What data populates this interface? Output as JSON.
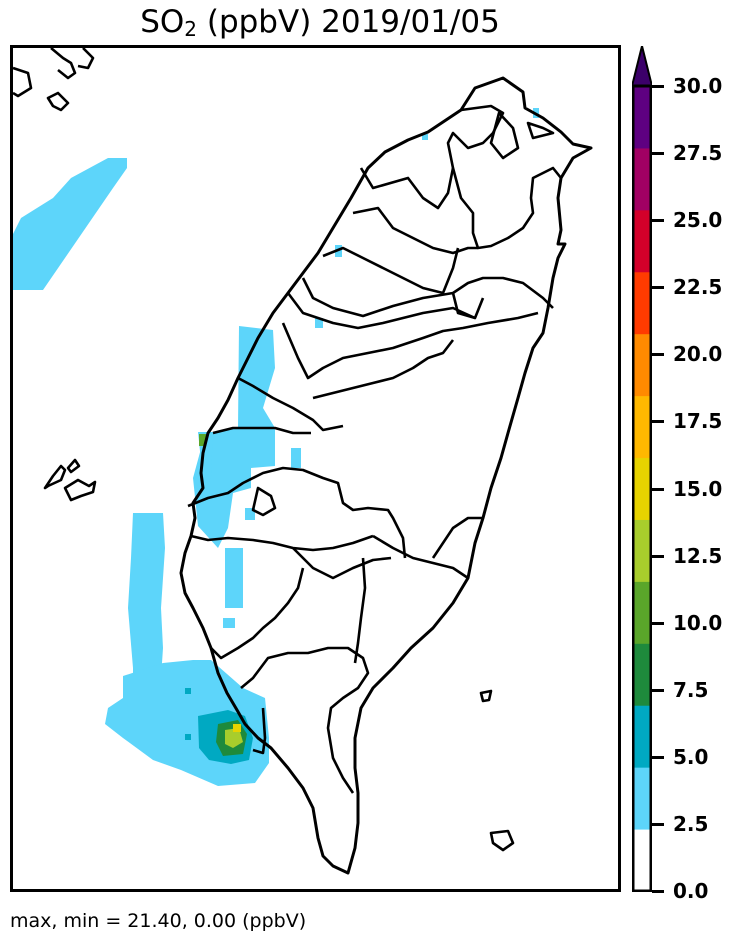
{
  "title": {
    "species": "SO",
    "subscript": "2",
    "rest": " (ppbV) 2019/01/05"
  },
  "footer": "max, min = 21.40, 0.00 (ppbV)",
  "colorbar": {
    "ticks": [
      "30.0",
      "27.5",
      "25.0",
      "22.5",
      "20.0",
      "17.5",
      "15.0",
      "12.5",
      "10.0",
      "7.5",
      "5.0",
      "2.5",
      "0.0"
    ],
    "colors": [
      "#ffffff",
      "#5dd5fa",
      "#00a9c2",
      "#1e8a3c",
      "#5aa62a",
      "#a8cd2c",
      "#e7d300",
      "#ffb800",
      "#ff8a00",
      "#ff3b00",
      "#d3002a",
      "#a10063",
      "#5e0081"
    ],
    "extend_color": "#3c006a"
  },
  "map": {
    "region": "Taiwan",
    "max": 21.4,
    "min": 0.0,
    "units": "ppbV"
  }
}
